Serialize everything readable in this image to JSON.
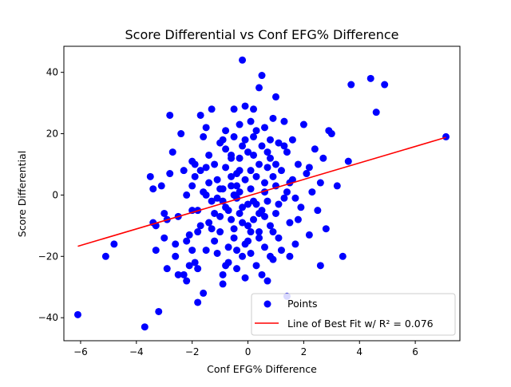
{
  "chart_data": {
    "type": "scatter",
    "title": "Score Differential vs Conf EFG% Difference",
    "xlabel": "Conf EFG% Difference",
    "ylabel": "Score Differential",
    "xlim": [
      -6.6,
      7.6
    ],
    "ylim": [
      -47.5,
      48.5
    ],
    "xticks": [
      -6,
      -4,
      -2,
      0,
      2,
      4,
      6
    ],
    "yticks": [
      -40,
      -20,
      0,
      20,
      40
    ],
    "xtick_labels": [
      "−6",
      "−4",
      "−2",
      "0",
      "2",
      "4",
      "6"
    ],
    "ytick_labels": [
      "−40",
      "−20",
      "0",
      "20",
      "40"
    ],
    "grid": false,
    "legend_position": "bottom-right",
    "series": [
      {
        "name": "Points",
        "kind": "scatter",
        "color": "#0000ff",
        "points": [
          [
            -6.1,
            -39
          ],
          [
            -4.8,
            -16
          ],
          [
            -5.1,
            -20
          ],
          [
            -3.7,
            -43
          ],
          [
            -3.5,
            6
          ],
          [
            -3.4,
            2
          ],
          [
            -3.4,
            -9
          ],
          [
            -3.3,
            -18
          ],
          [
            -3.3,
            -10
          ],
          [
            -3.2,
            -38
          ],
          [
            -3.1,
            3
          ],
          [
            -3.0,
            -14
          ],
          [
            -3.0,
            -6
          ],
          [
            -2.9,
            -24
          ],
          [
            -2.9,
            -8
          ],
          [
            -2.8,
            7
          ],
          [
            -2.8,
            26
          ],
          [
            -2.7,
            14
          ],
          [
            -2.6,
            -20
          ],
          [
            -2.5,
            -26
          ],
          [
            -2.5,
            -7
          ],
          [
            -2.4,
            20
          ],
          [
            -2.3,
            -26
          ],
          [
            -2.3,
            8
          ],
          [
            -2.2,
            -15
          ],
          [
            -2.2,
            -28
          ],
          [
            -2.1,
            -13
          ],
          [
            -2.1,
            -23
          ],
          [
            -2.0,
            11
          ],
          [
            -2.0,
            3
          ],
          [
            -2.0,
            -5
          ],
          [
            -1.9,
            -22
          ],
          [
            -1.9,
            10
          ],
          [
            -1.8,
            -24
          ],
          [
            -1.8,
            -12
          ],
          [
            -1.8,
            -35
          ],
          [
            -1.8,
            -5
          ],
          [
            -1.7,
            8
          ],
          [
            -1.7,
            26
          ],
          [
            -1.6,
            -32
          ],
          [
            -1.6,
            19
          ],
          [
            -1.5,
            0
          ],
          [
            -1.5,
            -18
          ],
          [
            -1.5,
            9
          ],
          [
            -1.4,
            -9
          ],
          [
            -1.4,
            4
          ],
          [
            -1.3,
            28
          ],
          [
            -1.3,
            -2
          ],
          [
            -1.2,
            10
          ],
          [
            -1.2,
            -15
          ],
          [
            -1.1,
            -19
          ],
          [
            -1.1,
            5
          ],
          [
            -1.0,
            -7
          ],
          [
            -1.0,
            17
          ],
          [
            -1.0,
            -12
          ],
          [
            -0.9,
            -26
          ],
          [
            -0.9,
            2
          ],
          [
            -0.9,
            -29
          ],
          [
            -0.8,
            21
          ],
          [
            -0.8,
            -4
          ],
          [
            -0.8,
            9
          ],
          [
            -0.7,
            -17
          ],
          [
            -0.7,
            -22
          ],
          [
            -0.6,
            13
          ],
          [
            -0.6,
            -8
          ],
          [
            -0.6,
            3
          ],
          [
            -0.5,
            28
          ],
          [
            -0.5,
            -11
          ],
          [
            -0.5,
            19
          ],
          [
            -0.4,
            7
          ],
          [
            -0.4,
            -18
          ],
          [
            -0.4,
            -1
          ],
          [
            -0.3,
            12
          ],
          [
            -0.3,
            -6
          ],
          [
            -0.3,
            23
          ],
          [
            -0.2,
            44
          ],
          [
            -0.2,
            -4
          ],
          [
            -0.2,
            16
          ],
          [
            -0.1,
            -27
          ],
          [
            -0.1,
            29
          ],
          [
            -0.1,
            5
          ],
          [
            0.0,
            -10
          ],
          [
            0.0,
            14
          ],
          [
            0.0,
            -15
          ],
          [
            0.1,
            8
          ],
          [
            0.1,
            2
          ],
          [
            0.1,
            -19
          ],
          [
            0.2,
            28
          ],
          [
            0.2,
            -8
          ],
          [
            0.2,
            19
          ],
          [
            0.3,
            -23
          ],
          [
            0.3,
            6
          ],
          [
            0.3,
            -3
          ],
          [
            0.4,
            35
          ],
          [
            0.4,
            10
          ],
          [
            0.4,
            -12
          ],
          [
            0.5,
            39
          ],
          [
            0.5,
            -5
          ],
          [
            0.5,
            16
          ],
          [
            0.6,
            22
          ],
          [
            0.6,
            -17
          ],
          [
            0.6,
            1
          ],
          [
            0.7,
            9
          ],
          [
            0.7,
            -28
          ],
          [
            0.8,
            12
          ],
          [
            0.8,
            -10
          ],
          [
            0.9,
            25
          ],
          [
            0.9,
            -21
          ],
          [
            1.0,
            3
          ],
          [
            1.0,
            32
          ],
          [
            1.0,
            -6
          ],
          [
            1.1,
            17
          ],
          [
            1.1,
            -14
          ],
          [
            1.2,
            8
          ],
          [
            1.3,
            -1
          ],
          [
            1.3,
            24
          ],
          [
            1.4,
            -33
          ],
          [
            1.4,
            14
          ],
          [
            1.5,
            -9
          ],
          [
            1.5,
            4
          ],
          [
            1.6,
            18
          ],
          [
            1.7,
            -16
          ],
          [
            1.8,
            10
          ],
          [
            1.9,
            -4
          ],
          [
            2.0,
            23
          ],
          [
            2.1,
            7
          ],
          [
            2.2,
            -13
          ],
          [
            2.3,
            1
          ],
          [
            2.4,
            15
          ],
          [
            2.5,
            -5
          ],
          [
            2.6,
            -23
          ],
          [
            2.7,
            12
          ],
          [
            2.8,
            -11
          ],
          [
            2.9,
            21
          ],
          [
            3.0,
            20
          ],
          [
            3.2,
            3
          ],
          [
            3.4,
            -20
          ],
          [
            3.6,
            11
          ],
          [
            3.7,
            36
          ],
          [
            4.4,
            38
          ],
          [
            4.6,
            27
          ],
          [
            4.9,
            36
          ],
          [
            7.1,
            19
          ],
          [
            -1.5,
            22
          ],
          [
            -0.5,
            0
          ],
          [
            0.2,
            -2
          ],
          [
            0.6,
            -7
          ],
          [
            -0.9,
            -2
          ],
          [
            0.9,
            6
          ],
          [
            -0.3,
            1
          ],
          [
            1.1,
            -3
          ],
          [
            -1.2,
            -6
          ],
          [
            0.4,
            -14
          ],
          [
            -0.6,
            12
          ],
          [
            0.8,
            18
          ],
          [
            -0.2,
            -20
          ],
          [
            1.6,
            5
          ],
          [
            -1.7,
            -10
          ],
          [
            0.1,
            24
          ],
          [
            -0.8,
            15
          ],
          [
            1.2,
            -18
          ],
          [
            -0.4,
            -24
          ],
          [
            0.7,
            14
          ],
          [
            -1.0,
            2
          ],
          [
            1.8,
            -8
          ],
          [
            -2.2,
            0
          ],
          [
            0.3,
            21
          ],
          [
            -0.1,
            -16
          ],
          [
            2.2,
            9
          ],
          [
            -1.3,
            -11
          ],
          [
            0.5,
            -26
          ],
          [
            -0.6,
            6
          ],
          [
            1.4,
            1
          ],
          [
            -0.9,
            18
          ],
          [
            0.0,
            -3
          ],
          [
            0.9,
            -12
          ],
          [
            -0.3,
            8
          ],
          [
            -1.4,
            13
          ],
          [
            1.0,
            10
          ],
          [
            -0.5,
            -14
          ],
          [
            0.6,
            4
          ],
          [
            -2.0,
            -18
          ],
          [
            1.7,
            -1
          ],
          [
            -0.2,
            -9
          ],
          [
            0.8,
            -20
          ],
          [
            -1.1,
            -1
          ],
          [
            0.2,
            13
          ],
          [
            -0.7,
            -5
          ],
          [
            1.3,
            16
          ],
          [
            -1.9,
            6
          ],
          [
            0.4,
            -6
          ],
          [
            -0.4,
            3
          ],
          [
            2.6,
            4
          ],
          [
            -2.6,
            -16
          ],
          [
            1.5,
            -20
          ],
          [
            -0.8,
            -23
          ],
          [
            0.1,
            -12
          ],
          [
            -1.6,
            1
          ],
          [
            0.7,
            -2
          ],
          [
            -0.1,
            18
          ]
        ]
      },
      {
        "name": "Line of Best Fit w/ R² = 0.076",
        "kind": "line",
        "color": "#ff0000",
        "points": [
          [
            -6.1,
            -16.7
          ],
          [
            7.1,
            18.8
          ]
        ]
      }
    ]
  }
}
